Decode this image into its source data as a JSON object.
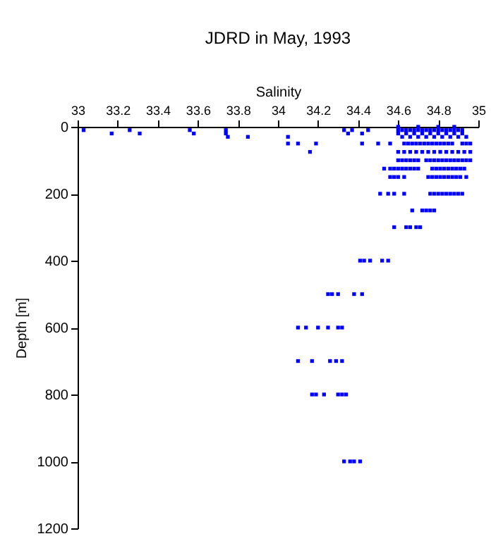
{
  "chart_data": {
    "type": "scatter",
    "title": "JDRD in May, 1993",
    "xlabel": "Salinity",
    "ylabel": "Depth [m]",
    "xlim": [
      33,
      35
    ],
    "xticks": [
      33,
      33.2,
      33.4,
      33.6,
      33.8,
      34,
      34.2,
      34.4,
      34.6,
      34.8,
      35
    ],
    "ylim": [
      1200,
      0
    ],
    "yticks": [
      0,
      200,
      400,
      600,
      800,
      1000,
      1200
    ],
    "grid": false,
    "legend": false,
    "marker": "square",
    "series": [
      {
        "color": "#0000ff",
        "x": [
          34.6,
          34.7,
          34.8,
          34.88,
          33.03,
          33.26,
          33.56,
          33.74,
          34.33,
          34.37,
          34.45,
          34.6,
          34.62,
          34.64,
          34.66,
          34.68,
          34.7,
          34.72,
          34.74,
          34.76,
          34.78,
          34.8,
          34.82,
          34.84,
          34.86,
          34.88,
          34.9,
          34.92,
          33.17,
          33.31,
          33.58,
          33.74,
          34.35,
          34.42,
          34.6,
          34.64,
          34.68,
          34.72,
          34.76,
          34.8,
          34.84,
          34.88,
          34.92,
          33.75,
          33.85,
          34.05,
          34.62,
          34.66,
          34.7,
          34.74,
          34.78,
          34.82,
          34.86,
          34.9,
          34.94,
          34.05,
          34.1,
          34.19,
          34.42,
          34.5,
          34.56,
          34.63,
          34.65,
          34.67,
          34.69,
          34.71,
          34.73,
          34.75,
          34.77,
          34.79,
          34.81,
          34.83,
          34.85,
          34.87,
          34.92,
          34.94,
          34.96,
          34.16,
          34.6,
          34.63,
          34.66,
          34.69,
          34.72,
          34.75,
          34.78,
          34.81,
          34.84,
          34.87,
          34.9,
          34.93,
          34.96,
          34.6,
          34.62,
          34.64,
          34.66,
          34.68,
          34.7,
          34.74,
          34.76,
          34.78,
          34.8,
          34.82,
          34.84,
          34.86,
          34.88,
          34.9,
          34.92,
          34.94,
          34.96,
          34.53,
          34.56,
          34.58,
          34.6,
          34.62,
          34.64,
          34.66,
          34.68,
          34.7,
          34.77,
          34.79,
          34.81,
          34.83,
          34.85,
          34.87,
          34.89,
          34.91,
          34.93,
          34.56,
          34.58,
          34.6,
          34.63,
          34.75,
          34.77,
          34.79,
          34.81,
          34.83,
          34.85,
          34.87,
          34.89,
          34.91,
          34.94,
          34.51,
          34.55,
          34.58,
          34.63,
          34.76,
          34.78,
          34.8,
          34.82,
          34.84,
          34.86,
          34.88,
          34.9,
          34.92,
          34.67,
          34.72,
          34.74,
          34.76,
          34.78,
          34.58,
          34.64,
          34.66,
          34.69,
          34.71,
          34.41,
          34.43,
          34.46,
          34.52,
          34.55,
          34.25,
          34.27,
          34.3,
          34.38,
          34.42,
          34.1,
          34.14,
          34.2,
          34.25,
          34.3,
          34.32,
          34.1,
          34.17,
          34.26,
          34.29,
          34.32,
          34.17,
          34.19,
          34.23,
          34.3,
          34.32,
          34.34,
          34.33,
          34.36,
          34.38,
          34.41
        ],
        "values": [
          0,
          0,
          0,
          0,
          10,
          10,
          10,
          10,
          10,
          10,
          10,
          10,
          10,
          10,
          10,
          10,
          10,
          10,
          10,
          10,
          10,
          10,
          10,
          10,
          10,
          10,
          10,
          10,
          20,
          20,
          20,
          20,
          20,
          20,
          20,
          20,
          20,
          20,
          20,
          20,
          20,
          20,
          20,
          30,
          30,
          30,
          30,
          30,
          30,
          30,
          30,
          30,
          30,
          30,
          30,
          50,
          50,
          50,
          50,
          50,
          50,
          50,
          50,
          50,
          50,
          50,
          50,
          50,
          50,
          50,
          50,
          50,
          50,
          50,
          50,
          50,
          50,
          75,
          75,
          75,
          75,
          75,
          75,
          75,
          75,
          75,
          75,
          75,
          75,
          75,
          75,
          100,
          100,
          100,
          100,
          100,
          100,
          100,
          100,
          100,
          100,
          100,
          100,
          100,
          100,
          100,
          100,
          100,
          100,
          125,
          125,
          125,
          125,
          125,
          125,
          125,
          125,
          125,
          125,
          125,
          125,
          125,
          125,
          125,
          125,
          125,
          125,
          150,
          150,
          150,
          150,
          150,
          150,
          150,
          150,
          150,
          150,
          150,
          150,
          150,
          150,
          200,
          200,
          200,
          200,
          200,
          200,
          200,
          200,
          200,
          200,
          200,
          200,
          200,
          250,
          250,
          250,
          250,
          250,
          300,
          300,
          300,
          300,
          300,
          400,
          400,
          400,
          400,
          400,
          500,
          500,
          500,
          500,
          500,
          600,
          600,
          600,
          600,
          600,
          600,
          700,
          700,
          700,
          700,
          700,
          800,
          800,
          800,
          800,
          800,
          800,
          1000,
          1000,
          1000,
          1000
        ]
      }
    ]
  }
}
